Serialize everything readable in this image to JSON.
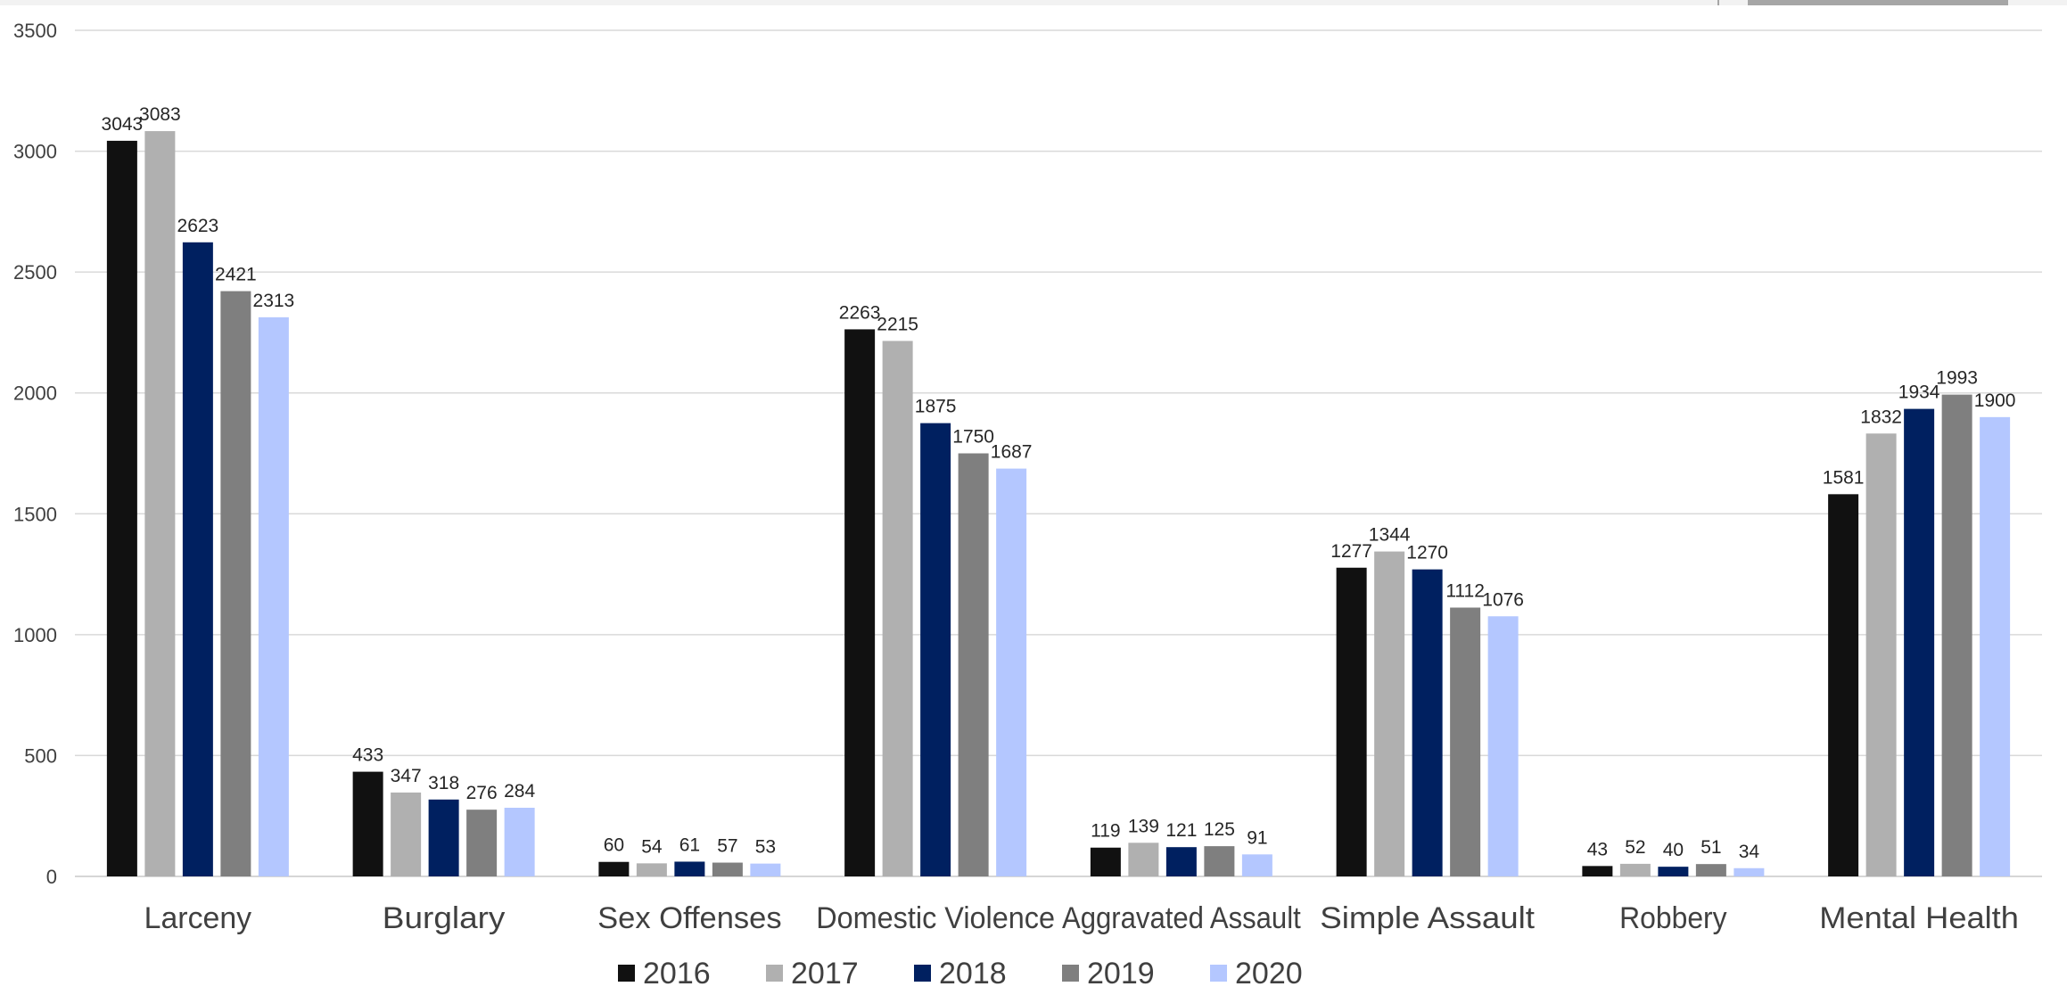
{
  "chart_data": {
    "type": "bar",
    "title": "",
    "xlabel": "",
    "ylabel": "",
    "ylim": [
      0,
      3500
    ],
    "yticks": [
      0,
      500,
      1000,
      1500,
      2000,
      2500,
      3000,
      3500
    ],
    "grid": true,
    "legend_position": "bottom",
    "categories": [
      "Larceny",
      "Burglary",
      "Sex Offenses",
      "Domestic Violence",
      "Aggravated Assault",
      "Simple Assault",
      "Robbery",
      "Mental Health"
    ],
    "series": [
      {
        "name": "2016",
        "color": "#111111",
        "values": [
          3043,
          433,
          60,
          2263,
          119,
          1277,
          43,
          1581
        ]
      },
      {
        "name": "2017",
        "color": "#b0b0b0",
        "values": [
          3083,
          347,
          54,
          2215,
          139,
          1344,
          52,
          1832
        ]
      },
      {
        "name": "2018",
        "color": "#002060",
        "values": [
          2623,
          318,
          61,
          1875,
          121,
          1270,
          40,
          1934
        ]
      },
      {
        "name": "2019",
        "color": "#7f7f7f",
        "values": [
          2421,
          276,
          57,
          1750,
          125,
          1112,
          51,
          1993
        ]
      },
      {
        "name": "2020",
        "color": "#b4c7ff",
        "values": [
          2313,
          284,
          53,
          1687,
          91,
          1076,
          34,
          1900
        ]
      }
    ]
  }
}
